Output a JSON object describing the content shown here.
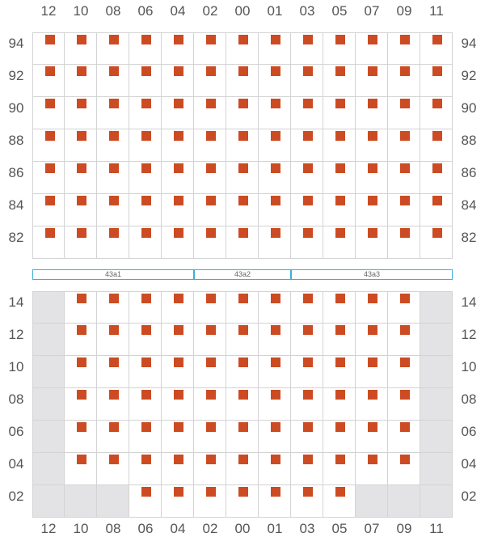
{
  "columns": [
    "12",
    "10",
    "08",
    "06",
    "04",
    "02",
    "00",
    "01",
    "03",
    "05",
    "07",
    "09",
    "11"
  ],
  "upper_section": {
    "rows": [
      "94",
      "92",
      "90",
      "88",
      "86",
      "84",
      "82"
    ],
    "available_cols": {
      "94": [
        0,
        1,
        2,
        3,
        4,
        5,
        6,
        7,
        8,
        9,
        10,
        11,
        12
      ],
      "92": [
        0,
        1,
        2,
        3,
        4,
        5,
        6,
        7,
        8,
        9,
        10,
        11,
        12
      ],
      "90": [
        0,
        1,
        2,
        3,
        4,
        5,
        6,
        7,
        8,
        9,
        10,
        11,
        12
      ],
      "88": [
        0,
        1,
        2,
        3,
        4,
        5,
        6,
        7,
        8,
        9,
        10,
        11,
        12
      ],
      "86": [
        0,
        1,
        2,
        3,
        4,
        5,
        6,
        7,
        8,
        9,
        10,
        11,
        12
      ],
      "84": [
        0,
        1,
        2,
        3,
        4,
        5,
        6,
        7,
        8,
        9,
        10,
        11,
        12
      ],
      "82": [
        0,
        1,
        2,
        3,
        4,
        5,
        6,
        7,
        8,
        9,
        10,
        11,
        12
      ]
    },
    "blocked_cols": {}
  },
  "zones": [
    {
      "label": "43a1",
      "from_col": 0,
      "to_col": 5
    },
    {
      "label": "43a2",
      "from_col": 5,
      "to_col": 8
    },
    {
      "label": "43a3",
      "from_col": 8,
      "to_col": 13
    }
  ],
  "lower_section": {
    "rows": [
      "14",
      "12",
      "10",
      "08",
      "06",
      "04",
      "02"
    ],
    "available_cols": {
      "14": [
        1,
        2,
        3,
        4,
        5,
        6,
        7,
        8,
        9,
        10,
        11
      ],
      "12": [
        1,
        2,
        3,
        4,
        5,
        6,
        7,
        8,
        9,
        10,
        11
      ],
      "10": [
        1,
        2,
        3,
        4,
        5,
        6,
        7,
        8,
        9,
        10,
        11
      ],
      "08": [
        1,
        2,
        3,
        4,
        5,
        6,
        7,
        8,
        9,
        10,
        11
      ],
      "06": [
        1,
        2,
        3,
        4,
        5,
        6,
        7,
        8,
        9,
        10,
        11
      ],
      "04": [
        1,
        2,
        3,
        4,
        5,
        6,
        7,
        8,
        9,
        10,
        11
      ],
      "02": [
        3,
        4,
        5,
        6,
        7,
        8,
        9
      ]
    },
    "blocked_cols": {
      "14": [
        0,
        12
      ],
      "12": [
        0,
        12
      ],
      "10": [
        0,
        12
      ],
      "08": [
        0,
        12
      ],
      "06": [
        0,
        12
      ],
      "04": [
        0,
        12
      ],
      "02": [
        0,
        1,
        2,
        10,
        11,
        12
      ]
    }
  },
  "colors": {
    "seat": "#cc4b23",
    "blocked": "#e3e3e5",
    "zone_border": "#3ab0d8",
    "grid_line": "#d3d3d3"
  }
}
